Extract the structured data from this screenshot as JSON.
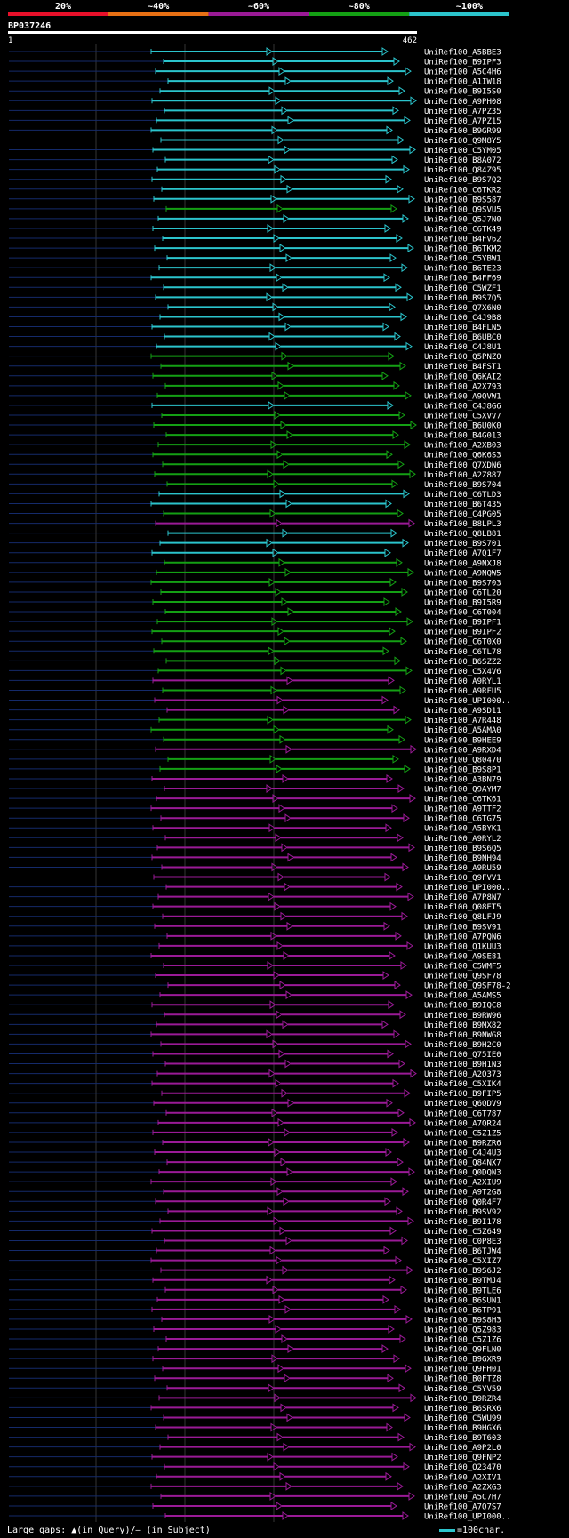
{
  "header": {
    "legend_labels": [
      "20%",
      "~40%",
      "~60%",
      "~80%",
      "~100%"
    ],
    "legend_colors": [
      "#e8102a",
      "#e87014",
      "#9a1a96",
      "#14a014",
      "#2bc4cc"
    ],
    "query_id": "BP037246",
    "range_start": "1",
    "range_end": "462"
  },
  "footer": {
    "gaps_text": "Large gaps: ▲(in Query)/– (in Subject)",
    "scale_text": "=100char."
  },
  "chart_data": {
    "type": "alignment",
    "query_length": 462,
    "tiers": [
      "#2bc4cc",
      "#14a014",
      "#9a1a96"
    ],
    "rows": [
      [
        "UniRef100_A5BBE3",
        0
      ],
      [
        "UniRef100_B9IPF3",
        0
      ],
      [
        "UniRef100_A5C4H6",
        0
      ],
      [
        "UniRef100_A1IW18",
        0
      ],
      [
        "UniRef100_B9I5S0",
        0
      ],
      [
        "UniRef100_A9PH08",
        0
      ],
      [
        "UniRef100_A7PZ35",
        0
      ],
      [
        "UniRef100_A7PZ15",
        0
      ],
      [
        "UniRef100_B9GR99",
        0
      ],
      [
        "UniRef100_Q9M8Y5",
        0
      ],
      [
        "UniRef100_C5YM05",
        0
      ],
      [
        "UniRef100_B8A072",
        0
      ],
      [
        "UniRef100_Q84Z95",
        0
      ],
      [
        "UniRef100_B9S7Q2",
        0
      ],
      [
        "UniRef100_C6TKR2",
        0
      ],
      [
        "UniRef100_B9S587",
        0
      ],
      [
        "UniRef100_Q9SVU5",
        1
      ],
      [
        "UniRef100_Q5J7N0",
        0
      ],
      [
        "UniRef100_C6TK49",
        0
      ],
      [
        "UniRef100_B4FV62",
        0
      ],
      [
        "UniRef100_B6TKM2",
        0
      ],
      [
        "UniRef100_C5YBW1",
        0
      ],
      [
        "UniRef100_B6TE23",
        0
      ],
      [
        "UniRef100_B4FF69",
        0
      ],
      [
        "UniRef100_C5WZF1",
        0
      ],
      [
        "UniRef100_B9S7Q5",
        0
      ],
      [
        "UniRef100_Q7X6N0",
        0
      ],
      [
        "UniRef100_C4J9B8",
        0
      ],
      [
        "UniRef100_B4FLN5",
        0
      ],
      [
        "UniRef100_B6UBC0",
        0
      ],
      [
        "UniRef100_C4J8U1",
        0
      ],
      [
        "UniRef100_Q5PNZ0",
        1
      ],
      [
        "UniRef100_B4FST1",
        1
      ],
      [
        "UniRef100_Q6KAI2",
        1
      ],
      [
        "UniRef100_A2X793",
        1
      ],
      [
        "UniRef100_A9QVW1",
        1
      ],
      [
        "UniRef100_C4J8G6",
        0
      ],
      [
        "UniRef100_C5XVV7",
        1
      ],
      [
        "UniRef100_B6U0K0",
        1
      ],
      [
        "UniRef100_B4G013",
        1
      ],
      [
        "UniRef100_A2XB03",
        1
      ],
      [
        "UniRef100_Q6K6S3",
        1
      ],
      [
        "UniRef100_Q7XDN6",
        1
      ],
      [
        "UniRef100_A2Z887",
        1
      ],
      [
        "UniRef100_B9S704",
        1
      ],
      [
        "UniRef100_C6TLD3",
        0
      ],
      [
        "UniRef100_B6T435",
        0
      ],
      [
        "UniRef100_C4PG05",
        1
      ],
      [
        "UniRef100_B8LPL3",
        2
      ],
      [
        "UniRef100_Q8LB81",
        0
      ],
      [
        "UniRef100_B9S701",
        0
      ],
      [
        "UniRef100_A7Q1F7",
        0
      ],
      [
        "UniRef100_A9NXJ8",
        1
      ],
      [
        "UniRef100_A9NQW5",
        1
      ],
      [
        "UniRef100_B9S703",
        1
      ],
      [
        "UniRef100_C6TL20",
        1
      ],
      [
        "UniRef100_B9I5R9",
        1
      ],
      [
        "UniRef100_C6T004",
        1
      ],
      [
        "UniRef100_B9IPF1",
        1
      ],
      [
        "UniRef100_B9IPF2",
        1
      ],
      [
        "UniRef100_C6T0X0",
        1
      ],
      [
        "UniRef100_C6TL78",
        1
      ],
      [
        "UniRef100_B6SZZ2",
        1
      ],
      [
        "UniRef100_C5X4V6",
        1
      ],
      [
        "UniRef100_A9RYL1",
        2
      ],
      [
        "UniRef100_A9RFU5",
        1
      ],
      [
        "UniRef100_UPI000..",
        2
      ],
      [
        "UniRef100_A9SD11",
        2
      ],
      [
        "UniRef100_A7R448",
        1
      ],
      [
        "UniRef100_A5AMA0",
        1
      ],
      [
        "UniRef100_B9HEE9",
        1
      ],
      [
        "UniRef100_A9RXD4",
        2
      ],
      [
        "UniRef100_Q80470",
        1
      ],
      [
        "UniRef100_B9S8P1",
        1
      ],
      [
        "UniRef100_A3BN79",
        2
      ],
      [
        "UniRef100_Q9AYM7",
        2
      ],
      [
        "UniRef100_C6TK61",
        2
      ],
      [
        "UniRef100_A9TTF2",
        2
      ],
      [
        "UniRef100_C6TG75",
        2
      ],
      [
        "UniRef100_A5BYK1",
        2
      ],
      [
        "UniRef100_A9RYL2",
        2
      ],
      [
        "UniRef100_B9S6Q5",
        2
      ],
      [
        "UniRef100_B9NH94",
        2
      ],
      [
        "UniRef100_A9RU59",
        2
      ],
      [
        "UniRef100_Q9FVV1",
        2
      ],
      [
        "UniRef100_UPI000..",
        2
      ],
      [
        "UniRef100_A7P8N7",
        2
      ],
      [
        "UniRef100_Q08ET5",
        2
      ],
      [
        "UniRef100_Q8LFJ9",
        2
      ],
      [
        "UniRef100_B9SV91",
        2
      ],
      [
        "UniRef100_A7PQN6",
        2
      ],
      [
        "UniRef100_Q1KUU3",
        2
      ],
      [
        "UniRef100_A9SE81",
        2
      ],
      [
        "UniRef100_C5WMF5",
        2
      ],
      [
        "UniRef100_Q9SF78",
        2
      ],
      [
        "UniRef100_Q9SF78-2",
        2
      ],
      [
        "UniRef100_A5AMS5",
        2
      ],
      [
        "UniRef100_B9IQC8",
        2
      ],
      [
        "UniRef100_B9RW96",
        2
      ],
      [
        "UniRef100_B9MX82",
        2
      ],
      [
        "UniRef100_B9NWG8",
        2
      ],
      [
        "UniRef100_B9H2C0",
        2
      ],
      [
        "UniRef100_Q75IE0",
        2
      ],
      [
        "UniRef100_B9H1N3",
        2
      ],
      [
        "UniRef100_A2Q373",
        2
      ],
      [
        "UniRef100_C5XIK4",
        2
      ],
      [
        "UniRef100_B9FIP5",
        2
      ],
      [
        "UniRef100_Q6QDV9",
        2
      ],
      [
        "UniRef100_C6T787",
        2
      ],
      [
        "UniRef100_A7QR24",
        2
      ],
      [
        "UniRef100_C5Z1Z5",
        2
      ],
      [
        "UniRef100_B9RZR6",
        2
      ],
      [
        "UniRef100_C4J4U3",
        2
      ],
      [
        "UniRef100_Q84NX7",
        2
      ],
      [
        "UniRef100_Q0DQN3",
        2
      ],
      [
        "UniRef100_A2XIU9",
        2
      ],
      [
        "UniRef100_A9T2G8",
        2
      ],
      [
        "UniRef100_Q0R4F7",
        2
      ],
      [
        "UniRef100_B9SV92",
        2
      ],
      [
        "UniRef100_B9I178",
        2
      ],
      [
        "UniRef100_C5Z649",
        2
      ],
      [
        "UniRef100_C0P8E3",
        2
      ],
      [
        "UniRef100_B6TJW4",
        2
      ],
      [
        "UniRef100_C5XIZ7",
        2
      ],
      [
        "UniRef100_B9S6J2",
        2
      ],
      [
        "UniRef100_B9TMJ4",
        2
      ],
      [
        "UniRef100_B9TLE6",
        2
      ],
      [
        "UniRef100_B6SUN1",
        2
      ],
      [
        "UniRef100_B6TP91",
        2
      ],
      [
        "UniRef100_B9S8H3",
        2
      ],
      [
        "UniRef100_Q5Z983",
        2
      ],
      [
        "UniRef100_C5Z1Z6",
        2
      ],
      [
        "UniRef100_Q9FLN0",
        2
      ],
      [
        "UniRef100_B9GXR9",
        2
      ],
      [
        "UniRef100_Q9FH01",
        2
      ],
      [
        "UniRef100_B0FTZ8",
        2
      ],
      [
        "UniRef100_C5YV59",
        2
      ],
      [
        "UniRef100_B9RZR4",
        2
      ],
      [
        "UniRef100_B6SRX6",
        2
      ],
      [
        "UniRef100_C5WU99",
        2
      ],
      [
        "UniRef100_B9HGX6",
        2
      ],
      [
        "UniRef100_B9T603",
        2
      ],
      [
        "UniRef100_A9P2L0",
        2
      ],
      [
        "UniRef100_Q9FNP2",
        2
      ],
      [
        "UniRef100_O23470",
        2
      ],
      [
        "UniRef100_A2XIV1",
        2
      ],
      [
        "UniRef100_A2ZXG3",
        2
      ],
      [
        "UniRef100_A5C7H7",
        2
      ],
      [
        "UniRef100_A7Q7S7",
        2
      ],
      [
        "UniRef100_UPI000..",
        2
      ]
    ]
  }
}
